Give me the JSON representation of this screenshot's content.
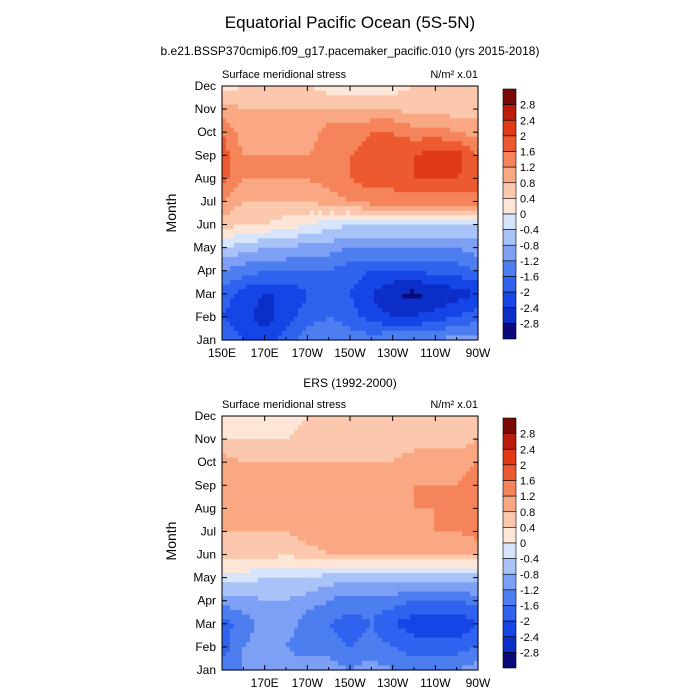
{
  "figure": {
    "title": "Equatorial Pacific Ocean (5S-5N)"
  },
  "chart_data": [
    {
      "type": "heatmap",
      "title": "b.e21.BSSP370cmip6.f09_g17.pacemaker_pacific.010 (yrs 2015-2018)",
      "left_label": "Surface meridional stress",
      "right_label": "N/m² x.01",
      "ylabel": "Month",
      "xlabel": "",
      "x_ticks": [
        "150E",
        "170E",
        "170W",
        "150W",
        "130W",
        "110W",
        "90W"
      ],
      "y_ticks": [
        "Jan",
        "Feb",
        "Mar",
        "Apr",
        "May",
        "Jun",
        "Jul",
        "Aug",
        "Sep",
        "Oct",
        "Nov",
        "Dec"
      ],
      "x_grid_lon": [
        150,
        160,
        170,
        180,
        190,
        200,
        210,
        220,
        230,
        240,
        250,
        260,
        270
      ],
      "z": [
        [
          -1.8,
          -2.0,
          -2.2,
          -1.8,
          -1.4,
          -1.2,
          -1.4,
          -1.4,
          -1.2,
          -1.2,
          -1.2,
          -1.0,
          -1.0
        ],
        [
          -2.0,
          -2.2,
          -2.6,
          -2.2,
          -1.8,
          -1.6,
          -1.8,
          -2.2,
          -2.4,
          -2.4,
          -2.2,
          -2.0,
          -1.8
        ],
        [
          -1.8,
          -2.2,
          -2.4,
          -2.4,
          -2.0,
          -1.8,
          -2.0,
          -2.4,
          -2.8,
          -2.9,
          -2.8,
          -2.6,
          -2.4
        ],
        [
          -1.2,
          -1.4,
          -1.6,
          -1.6,
          -1.6,
          -1.6,
          -1.8,
          -2.0,
          -2.0,
          -2.0,
          -1.8,
          -1.8,
          -1.6
        ],
        [
          -0.4,
          -0.6,
          -0.8,
          -0.8,
          -1.0,
          -1.0,
          -1.2,
          -1.2,
          -1.2,
          -1.2,
          -1.2,
          -1.2,
          -1.0
        ],
        [
          0.6,
          0.4,
          0.4,
          0.2,
          0.0,
          -0.2,
          -0.4,
          -0.4,
          -0.4,
          -0.4,
          -0.4,
          -0.4,
          -0.4
        ],
        [
          1.2,
          0.8,
          0.8,
          0.8,
          0.8,
          1.0,
          1.2,
          1.4,
          1.4,
          1.4,
          1.4,
          1.4,
          1.4
        ],
        [
          1.8,
          1.2,
          1.2,
          1.2,
          1.2,
          1.4,
          1.6,
          1.8,
          1.8,
          2.0,
          2.0,
          2.0,
          1.8
        ],
        [
          1.8,
          1.2,
          1.2,
          1.2,
          1.2,
          1.4,
          1.6,
          1.8,
          1.8,
          2.0,
          2.2,
          2.2,
          1.6
        ],
        [
          1.6,
          1.0,
          0.8,
          0.8,
          1.0,
          1.4,
          1.4,
          1.6,
          1.6,
          1.4,
          1.4,
          1.2,
          1.0
        ],
        [
          1.0,
          0.8,
          0.8,
          0.8,
          0.8,
          0.8,
          0.8,
          0.8,
          0.8,
          0.6,
          0.6,
          0.6,
          0.6
        ],
        [
          0.2,
          0.4,
          0.4,
          0.4,
          0.4,
          0.2,
          0.2,
          0.2,
          0.2,
          0.4,
          0.4,
          0.4,
          0.4
        ]
      ]
    },
    {
      "type": "heatmap",
      "title": "ERS (1992-2000)",
      "left_label": "Surface meridional stress",
      "right_label": "N/m² x.01",
      "ylabel": "Month",
      "xlabel": "",
      "x_ticks": [
        "170E",
        "170W",
        "150W",
        "130W",
        "110W",
        "90W"
      ],
      "y_ticks": [
        "Jan",
        "Feb",
        "Mar",
        "Apr",
        "May",
        "Jun",
        "Jul",
        "Aug",
        "Sep",
        "Oct",
        "Nov",
        "Dec"
      ],
      "x_grid_lon": [
        150,
        160,
        170,
        180,
        190,
        200,
        210,
        220,
        230,
        240,
        250,
        260,
        270
      ],
      "z": [
        [
          -1.4,
          -1.2,
          -1.0,
          -1.0,
          -1.0,
          -1.0,
          -1.2,
          -1.0,
          -1.2,
          -1.4,
          -1.2,
          -1.2,
          -1.0
        ],
        [
          -1.8,
          -1.2,
          -1.0,
          -1.2,
          -1.4,
          -1.4,
          -1.6,
          -1.4,
          -1.6,
          -1.8,
          -1.8,
          -1.8,
          -1.6
        ],
        [
          -1.8,
          -1.4,
          -1.0,
          -1.0,
          -1.4,
          -1.6,
          -1.8,
          -1.6,
          -2.0,
          -2.2,
          -2.4,
          -2.4,
          -2.0
        ],
        [
          -1.0,
          -1.0,
          -0.8,
          -0.8,
          -1.0,
          -1.2,
          -1.4,
          -1.4,
          -1.4,
          -1.6,
          -1.6,
          -1.6,
          -1.4
        ],
        [
          -0.2,
          -0.2,
          -0.4,
          -0.4,
          -0.4,
          -0.6,
          -0.6,
          -0.6,
          -0.6,
          -0.6,
          -0.6,
          -0.6,
          -0.6
        ],
        [
          0.6,
          0.6,
          0.6,
          0.4,
          0.6,
          0.8,
          0.8,
          0.8,
          0.8,
          0.8,
          0.8,
          0.8,
          0.8
        ],
        [
          0.8,
          0.8,
          0.8,
          0.8,
          1.0,
          1.0,
          1.0,
          1.0,
          1.0,
          1.0,
          1.2,
          1.2,
          1.4
        ],
        [
          1.2,
          0.8,
          0.8,
          0.8,
          1.0,
          1.0,
          1.0,
          1.0,
          1.0,
          1.2,
          1.2,
          1.2,
          1.4
        ],
        [
          1.2,
          0.8,
          0.8,
          0.8,
          0.8,
          0.8,
          1.0,
          1.0,
          1.0,
          1.2,
          1.2,
          1.2,
          1.4
        ],
        [
          1.0,
          0.8,
          0.8,
          0.8,
          0.8,
          0.8,
          0.8,
          0.8,
          0.8,
          1.0,
          1.0,
          1.0,
          1.2
        ],
        [
          0.4,
          0.4,
          0.4,
          0.4,
          0.6,
          0.6,
          0.6,
          0.6,
          0.6,
          0.6,
          0.6,
          0.6,
          0.8
        ],
        [
          0.0,
          0.2,
          0.2,
          0.2,
          0.4,
          0.4,
          0.4,
          0.4,
          0.4,
          0.4,
          0.4,
          0.4,
          0.6
        ]
      ]
    }
  ],
  "colorbar": {
    "labels": [
      "2.8",
      "2.4",
      "2",
      "1.6",
      "1.2",
      "0.8",
      "0.4",
      "0",
      "-0.4",
      "-0.8",
      "-1.2",
      "-1.6",
      "-2",
      "-2.4",
      "-2.8"
    ],
    "levels": [
      -2.8,
      -2.4,
      -2.0,
      -1.6,
      -1.2,
      -0.8,
      -0.4,
      0.0,
      0.4,
      0.8,
      1.2,
      1.6,
      2.0,
      2.4,
      2.8
    ],
    "colors": [
      "#0a0a78",
      "#0c2ec8",
      "#1545e6",
      "#2f62ee",
      "#4d7ef0",
      "#7da0f5",
      "#a9c2f8",
      "#d6e5fb",
      "#fde6d7",
      "#fcc8ad",
      "#f9a883",
      "#f5845a",
      "#ee5a30",
      "#e03a16",
      "#bb1c0c",
      "#7a0a05"
    ]
  }
}
